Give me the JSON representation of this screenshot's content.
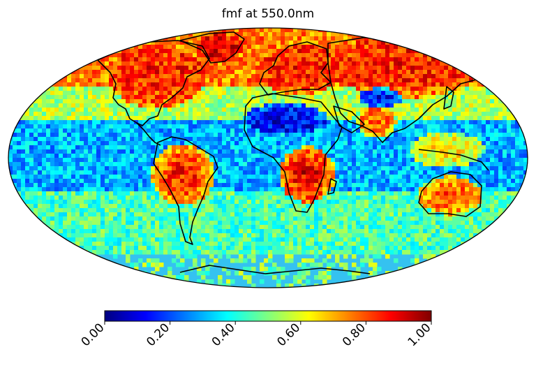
{
  "title": "fmf at 550.0nm",
  "projection": "mollweide",
  "colormap": "jet",
  "colorbar": {
    "orientation": "horizontal",
    "vmin": 0.0,
    "vmax": 1.0,
    "ticks": [
      {
        "value": 0.0,
        "label": "0.00"
      },
      {
        "value": 0.2,
        "label": "0.20"
      },
      {
        "value": 0.4,
        "label": "0.40"
      },
      {
        "value": 0.6,
        "label": "0.60"
      },
      {
        "value": 0.8,
        "label": "0.80"
      },
      {
        "value": 1.0,
        "label": "1.00"
      }
    ],
    "colors": [
      "#00007f",
      "#0000ff",
      "#007fff",
      "#00ffff",
      "#7fff7f",
      "#ffff00",
      "#ff7f00",
      "#ff0000",
      "#7f0000"
    ]
  },
  "regions": [
    {
      "name": "North America",
      "value": 0.85
    },
    {
      "name": "Greenland",
      "value": 0.9
    },
    {
      "name": "Europe",
      "value": 0.85
    },
    {
      "name": "Northern Asia",
      "value": 0.85
    },
    {
      "name": "Sahara",
      "value": 0.1
    },
    {
      "name": "Tibetan Plateau",
      "value": 0.12
    },
    {
      "name": "India",
      "value": 0.8
    },
    {
      "name": "Southern Africa",
      "value": 0.9
    },
    {
      "name": "Amazon",
      "value": 0.85
    },
    {
      "name": "Australia",
      "value": 0.8
    },
    {
      "name": "Southeast Asia",
      "value": 0.65
    },
    {
      "name": "Tropical oceans",
      "value": 0.3
    },
    {
      "name": "Southern Ocean",
      "value": 0.45
    },
    {
      "name": "Antarctica",
      "value": null
    }
  ]
}
